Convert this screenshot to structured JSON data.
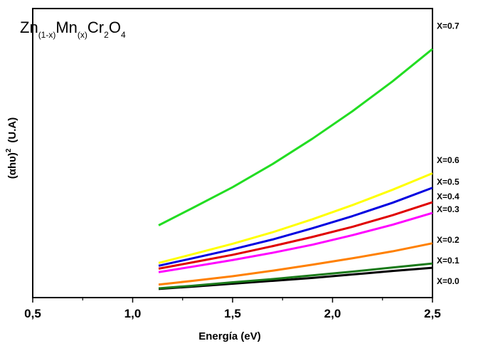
{
  "chart_data": {
    "type": "line",
    "title": {
      "parts": [
        {
          "text": "Zn",
          "sub": false
        },
        {
          "text": "(1-x)",
          "sub": true
        },
        {
          "text": "Mn",
          "sub": false
        },
        {
          "text": "(x)",
          "sub": true
        },
        {
          "text": "Cr",
          "sub": false
        },
        {
          "text": "2",
          "sub": true
        },
        {
          "text": "O",
          "sub": false
        },
        {
          "text": "4",
          "sub": true
        }
      ]
    },
    "xlabel": "Energía (eV)",
    "ylabel": {
      "base": "(αhυ)",
      "sup": "2",
      "unit": "(U.A)"
    },
    "xlim": [
      0.5,
      2.5
    ],
    "ylim": [
      0,
      1
    ],
    "x_ticks": [
      0.5,
      1.0,
      1.5,
      2.0,
      2.5
    ],
    "x_tick_labels": [
      "0,5",
      "1,0",
      "1,5",
      "2,0",
      "2,5"
    ],
    "y_ticks_labeled": false,
    "grid": false,
    "legend": "inline-right",
    "x": [
      1.13,
      1.3,
      1.5,
      1.7,
      1.9,
      2.1,
      2.3,
      2.5
    ],
    "series": [
      {
        "name": "X=0.0",
        "color": "#000000",
        "values": [
          0.03,
          0.038,
          0.048,
          0.058,
          0.068,
          0.08,
          0.092,
          0.103
        ]
      },
      {
        "name": "X=0.1",
        "color": "#1a7a1a",
        "values": [
          0.032,
          0.041,
          0.053,
          0.064,
          0.077,
          0.09,
          0.104,
          0.118
        ]
      },
      {
        "name": "X=0.2",
        "color": "#ff8000",
        "values": [
          0.045,
          0.058,
          0.074,
          0.093,
          0.114,
          0.136,
          0.16,
          0.188
        ]
      },
      {
        "name": "X=0.3",
        "color": "#ff00ff",
        "values": [
          0.088,
          0.107,
          0.13,
          0.155,
          0.183,
          0.216,
          0.252,
          0.293
        ]
      },
      {
        "name": "X=0.4",
        "color": "#e00000",
        "values": [
          0.1,
          0.122,
          0.148,
          0.178,
          0.21,
          0.245,
          0.285,
          0.33
        ]
      },
      {
        "name": "X=0.5",
        "color": "#0000e0",
        "values": [
          0.11,
          0.136,
          0.167,
          0.201,
          0.24,
          0.282,
          0.328,
          0.38
        ]
      },
      {
        "name": "X=0.6",
        "color": "#ffff00",
        "values": [
          0.12,
          0.15,
          0.186,
          0.226,
          0.271,
          0.32,
          0.373,
          0.43
        ]
      },
      {
        "name": "X=0.7",
        "color": "#22dd22",
        "values": [
          0.25,
          0.31,
          0.382,
          0.462,
          0.55,
          0.645,
          0.748,
          0.86
        ]
      }
    ]
  }
}
